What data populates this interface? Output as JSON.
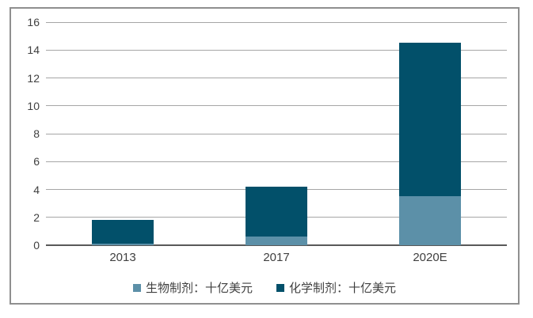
{
  "chart_data": {
    "type": "bar",
    "stacked": true,
    "title": "",
    "xlabel": "",
    "ylabel": "",
    "categories": [
      "2013",
      "2017",
      "2020E"
    ],
    "series": [
      {
        "name": "生物制剂：十亿美元",
        "color": "#5C90A8",
        "values": [
          0.1,
          0.6,
          3.5
        ]
      },
      {
        "name": "化学制剂：十亿美元",
        "color": "#02506A",
        "values": [
          1.7,
          3.6,
          11.0
        ]
      }
    ],
    "totals": [
      1.8,
      4.2,
      14.5
    ],
    "ylim": [
      0,
      16
    ],
    "ytick_step": 2,
    "yticks": [
      0,
      2,
      4,
      6,
      8,
      10,
      12,
      14,
      16
    ],
    "grid": "horizontal",
    "legend_position": "bottom"
  },
  "colors": {
    "biologics": "#5C90A8",
    "chemicals": "#02506A",
    "gridline": "#A6A6A6",
    "zero_axis": "#595959",
    "frame_border": "#8F8F8F",
    "text": "#404040",
    "background": "#FFFFFF"
  }
}
